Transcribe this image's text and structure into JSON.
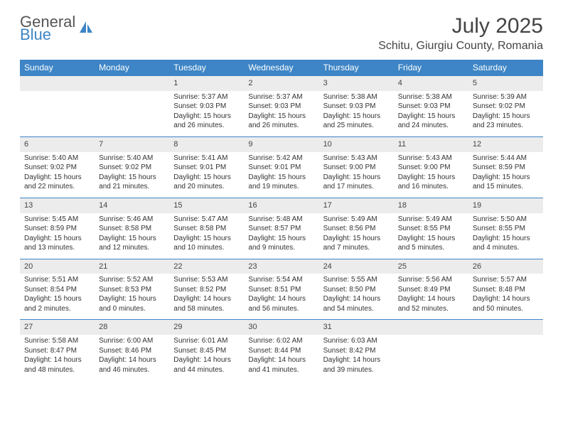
{
  "logo": {
    "line1": "General",
    "line2": "Blue"
  },
  "title": "July 2025",
  "location": "Schitu, Giurgiu County, Romania",
  "header_bg": "#3d85c6",
  "daynum_bg": "#ececec",
  "weekdays": [
    "Sunday",
    "Monday",
    "Tuesday",
    "Wednesday",
    "Thursday",
    "Friday",
    "Saturday"
  ],
  "weeks": [
    [
      null,
      null,
      {
        "num": "1",
        "sunrise": "Sunrise: 5:37 AM",
        "sunset": "Sunset: 9:03 PM",
        "daylight1": "Daylight: 15 hours",
        "daylight2": "and 26 minutes."
      },
      {
        "num": "2",
        "sunrise": "Sunrise: 5:37 AM",
        "sunset": "Sunset: 9:03 PM",
        "daylight1": "Daylight: 15 hours",
        "daylight2": "and 26 minutes."
      },
      {
        "num": "3",
        "sunrise": "Sunrise: 5:38 AM",
        "sunset": "Sunset: 9:03 PM",
        "daylight1": "Daylight: 15 hours",
        "daylight2": "and 25 minutes."
      },
      {
        "num": "4",
        "sunrise": "Sunrise: 5:38 AM",
        "sunset": "Sunset: 9:03 PM",
        "daylight1": "Daylight: 15 hours",
        "daylight2": "and 24 minutes."
      },
      {
        "num": "5",
        "sunrise": "Sunrise: 5:39 AM",
        "sunset": "Sunset: 9:02 PM",
        "daylight1": "Daylight: 15 hours",
        "daylight2": "and 23 minutes."
      }
    ],
    [
      {
        "num": "6",
        "sunrise": "Sunrise: 5:40 AM",
        "sunset": "Sunset: 9:02 PM",
        "daylight1": "Daylight: 15 hours",
        "daylight2": "and 22 minutes."
      },
      {
        "num": "7",
        "sunrise": "Sunrise: 5:40 AM",
        "sunset": "Sunset: 9:02 PM",
        "daylight1": "Daylight: 15 hours",
        "daylight2": "and 21 minutes."
      },
      {
        "num": "8",
        "sunrise": "Sunrise: 5:41 AM",
        "sunset": "Sunset: 9:01 PM",
        "daylight1": "Daylight: 15 hours",
        "daylight2": "and 20 minutes."
      },
      {
        "num": "9",
        "sunrise": "Sunrise: 5:42 AM",
        "sunset": "Sunset: 9:01 PM",
        "daylight1": "Daylight: 15 hours",
        "daylight2": "and 19 minutes."
      },
      {
        "num": "10",
        "sunrise": "Sunrise: 5:43 AM",
        "sunset": "Sunset: 9:00 PM",
        "daylight1": "Daylight: 15 hours",
        "daylight2": "and 17 minutes."
      },
      {
        "num": "11",
        "sunrise": "Sunrise: 5:43 AM",
        "sunset": "Sunset: 9:00 PM",
        "daylight1": "Daylight: 15 hours",
        "daylight2": "and 16 minutes."
      },
      {
        "num": "12",
        "sunrise": "Sunrise: 5:44 AM",
        "sunset": "Sunset: 8:59 PM",
        "daylight1": "Daylight: 15 hours",
        "daylight2": "and 15 minutes."
      }
    ],
    [
      {
        "num": "13",
        "sunrise": "Sunrise: 5:45 AM",
        "sunset": "Sunset: 8:59 PM",
        "daylight1": "Daylight: 15 hours",
        "daylight2": "and 13 minutes."
      },
      {
        "num": "14",
        "sunrise": "Sunrise: 5:46 AM",
        "sunset": "Sunset: 8:58 PM",
        "daylight1": "Daylight: 15 hours",
        "daylight2": "and 12 minutes."
      },
      {
        "num": "15",
        "sunrise": "Sunrise: 5:47 AM",
        "sunset": "Sunset: 8:58 PM",
        "daylight1": "Daylight: 15 hours",
        "daylight2": "and 10 minutes."
      },
      {
        "num": "16",
        "sunrise": "Sunrise: 5:48 AM",
        "sunset": "Sunset: 8:57 PM",
        "daylight1": "Daylight: 15 hours",
        "daylight2": "and 9 minutes."
      },
      {
        "num": "17",
        "sunrise": "Sunrise: 5:49 AM",
        "sunset": "Sunset: 8:56 PM",
        "daylight1": "Daylight: 15 hours",
        "daylight2": "and 7 minutes."
      },
      {
        "num": "18",
        "sunrise": "Sunrise: 5:49 AM",
        "sunset": "Sunset: 8:55 PM",
        "daylight1": "Daylight: 15 hours",
        "daylight2": "and 5 minutes."
      },
      {
        "num": "19",
        "sunrise": "Sunrise: 5:50 AM",
        "sunset": "Sunset: 8:55 PM",
        "daylight1": "Daylight: 15 hours",
        "daylight2": "and 4 minutes."
      }
    ],
    [
      {
        "num": "20",
        "sunrise": "Sunrise: 5:51 AM",
        "sunset": "Sunset: 8:54 PM",
        "daylight1": "Daylight: 15 hours",
        "daylight2": "and 2 minutes."
      },
      {
        "num": "21",
        "sunrise": "Sunrise: 5:52 AM",
        "sunset": "Sunset: 8:53 PM",
        "daylight1": "Daylight: 15 hours",
        "daylight2": "and 0 minutes."
      },
      {
        "num": "22",
        "sunrise": "Sunrise: 5:53 AM",
        "sunset": "Sunset: 8:52 PM",
        "daylight1": "Daylight: 14 hours",
        "daylight2": "and 58 minutes."
      },
      {
        "num": "23",
        "sunrise": "Sunrise: 5:54 AM",
        "sunset": "Sunset: 8:51 PM",
        "daylight1": "Daylight: 14 hours",
        "daylight2": "and 56 minutes."
      },
      {
        "num": "24",
        "sunrise": "Sunrise: 5:55 AM",
        "sunset": "Sunset: 8:50 PM",
        "daylight1": "Daylight: 14 hours",
        "daylight2": "and 54 minutes."
      },
      {
        "num": "25",
        "sunrise": "Sunrise: 5:56 AM",
        "sunset": "Sunset: 8:49 PM",
        "daylight1": "Daylight: 14 hours",
        "daylight2": "and 52 minutes."
      },
      {
        "num": "26",
        "sunrise": "Sunrise: 5:57 AM",
        "sunset": "Sunset: 8:48 PM",
        "daylight1": "Daylight: 14 hours",
        "daylight2": "and 50 minutes."
      }
    ],
    [
      {
        "num": "27",
        "sunrise": "Sunrise: 5:58 AM",
        "sunset": "Sunset: 8:47 PM",
        "daylight1": "Daylight: 14 hours",
        "daylight2": "and 48 minutes."
      },
      {
        "num": "28",
        "sunrise": "Sunrise: 6:00 AM",
        "sunset": "Sunset: 8:46 PM",
        "daylight1": "Daylight: 14 hours",
        "daylight2": "and 46 minutes."
      },
      {
        "num": "29",
        "sunrise": "Sunrise: 6:01 AM",
        "sunset": "Sunset: 8:45 PM",
        "daylight1": "Daylight: 14 hours",
        "daylight2": "and 44 minutes."
      },
      {
        "num": "30",
        "sunrise": "Sunrise: 6:02 AM",
        "sunset": "Sunset: 8:44 PM",
        "daylight1": "Daylight: 14 hours",
        "daylight2": "and 41 minutes."
      },
      {
        "num": "31",
        "sunrise": "Sunrise: 6:03 AM",
        "sunset": "Sunset: 8:42 PM",
        "daylight1": "Daylight: 14 hours",
        "daylight2": "and 39 minutes."
      },
      null,
      null
    ]
  ]
}
